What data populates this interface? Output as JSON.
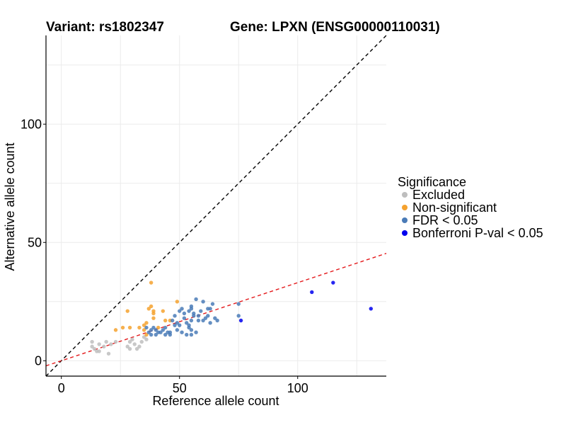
{
  "chart_data": {
    "type": "scatter",
    "title_left": "Variant: rs1802347",
    "title_right": "Gene: LPXN (ENSG00000110031)",
    "xlabel": "Reference allele count",
    "ylabel": "Alternative allele count",
    "xlim": [
      -6.5,
      137.5
    ],
    "ylim": [
      -6.5,
      137.5
    ],
    "x_ticks": [
      0,
      50,
      100
    ],
    "y_ticks": [
      0,
      50,
      100
    ],
    "grid": true,
    "legend": {
      "title": "Significance",
      "position": "right",
      "entries": [
        {
          "label": "Excluded",
          "color": "#bebebe"
        },
        {
          "label": "Non-significant",
          "color": "#f5a22f"
        },
        {
          "label": "FDR < 0.05",
          "color": "#4a7bb7"
        },
        {
          "label": "Bonferroni P-val < 0.05",
          "color": "#0000ee"
        }
      ]
    },
    "reference_lines": [
      {
        "style": "dashed",
        "color": "#000000",
        "intercept": 0,
        "slope": 1
      },
      {
        "style": "dashed",
        "color": "#e41a1c",
        "intercept": 0,
        "slope": 0.33
      }
    ],
    "series": [
      {
        "name": "Excluded",
        "color": "#bebebe",
        "points": [
          [
            13,
            8
          ],
          [
            13,
            6
          ],
          [
            14,
            5
          ],
          [
            15,
            4
          ],
          [
            16,
            4
          ],
          [
            16,
            7
          ],
          [
            18,
            6
          ],
          [
            19,
            8
          ],
          [
            20,
            3
          ],
          [
            21,
            7
          ],
          [
            23,
            8
          ],
          [
            28,
            6
          ],
          [
            29,
            8
          ],
          [
            29,
            5
          ],
          [
            30,
            9
          ],
          [
            31,
            7
          ],
          [
            32,
            5
          ],
          [
            33,
            6
          ],
          [
            34,
            8
          ],
          [
            35,
            10
          ],
          [
            36,
            9
          ]
        ]
      },
      {
        "name": "Non-significant",
        "color": "#f5a22f",
        "points": [
          [
            23,
            13
          ],
          [
            26,
            14
          ],
          [
            28,
            21
          ],
          [
            29,
            14
          ],
          [
            33,
            14
          ],
          [
            35,
            13
          ],
          [
            35,
            15
          ],
          [
            36,
            16
          ],
          [
            36,
            11
          ],
          [
            37,
            22
          ],
          [
            38,
            23
          ],
          [
            39,
            20
          ],
          [
            39,
            18
          ],
          [
            38,
            33
          ],
          [
            39,
            21
          ],
          [
            41,
            14
          ],
          [
            43,
            21
          ],
          [
            44,
            17
          ],
          [
            46,
            17
          ],
          [
            49,
            25
          ]
        ]
      },
      {
        "name": "FDR < 0.05",
        "color": "#4a7bb7",
        "points": [
          [
            36,
            14
          ],
          [
            37,
            12
          ],
          [
            38,
            13
          ],
          [
            38,
            11
          ],
          [
            39,
            14
          ],
          [
            40,
            13
          ],
          [
            40,
            11
          ],
          [
            41,
            12
          ],
          [
            42,
            12
          ],
          [
            43,
            13
          ],
          [
            44,
            11
          ],
          [
            44,
            14
          ],
          [
            45,
            12
          ],
          [
            46,
            12
          ],
          [
            46,
            11
          ],
          [
            47,
            17
          ],
          [
            48,
            19
          ],
          [
            49,
            13
          ],
          [
            50,
            15
          ],
          [
            50,
            21
          ],
          [
            51,
            22
          ],
          [
            52,
            18
          ],
          [
            52,
            20
          ],
          [
            53,
            11
          ],
          [
            53,
            16
          ],
          [
            54,
            14
          ],
          [
            54,
            21
          ],
          [
            55,
            22
          ],
          [
            55,
            17
          ],
          [
            55,
            23
          ],
          [
            56,
            20
          ],
          [
            56,
            19
          ],
          [
            57,
            12
          ],
          [
            57,
            26
          ],
          [
            58,
            17
          ],
          [
            58,
            19
          ],
          [
            59,
            21
          ],
          [
            60,
            25
          ],
          [
            60,
            17
          ],
          [
            61,
            18
          ],
          [
            62,
            22
          ],
          [
            62,
            19
          ],
          [
            63,
            16
          ],
          [
            63,
            22
          ],
          [
            64,
            24
          ],
          [
            65,
            18
          ],
          [
            66,
            17
          ],
          [
            55,
            13
          ],
          [
            55,
            11
          ],
          [
            54,
            15
          ],
          [
            49,
            16
          ],
          [
            51,
            12
          ],
          [
            48,
            15
          ],
          [
            75,
            24
          ],
          [
            75,
            19
          ]
        ]
      },
      {
        "name": "Bonferroni P-val < 0.05",
        "color": "#0000ee",
        "points": [
          [
            76,
            17
          ],
          [
            106,
            29
          ],
          [
            115,
            33
          ],
          [
            131,
            22
          ]
        ]
      }
    ]
  }
}
